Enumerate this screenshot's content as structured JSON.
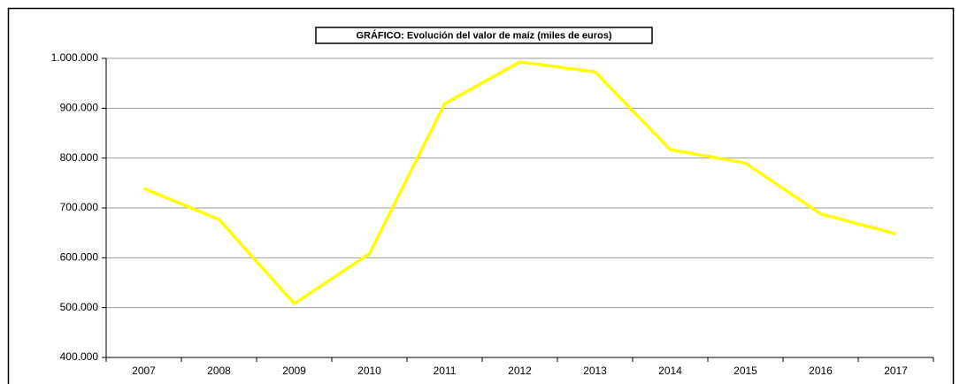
{
  "chart_data": {
    "type": "line",
    "title": "GRÁFICO: Evolución del valor de maíz (miles de euros)",
    "categories": [
      "2007",
      "2008",
      "2009",
      "2010",
      "2011",
      "2012",
      "2013",
      "2014",
      "2015",
      "2016",
      "2017"
    ],
    "series": [
      {
        "color": "#ffff00",
        "values": [
          739000,
          677000,
          508000,
          608000,
          909000,
          993000,
          973000,
          817000,
          790000,
          688000,
          648000
        ]
      }
    ],
    "ylim": [
      400000,
      1000000
    ],
    "yticks": [
      {
        "value": 400000,
        "label": "400.000"
      },
      {
        "value": 500000,
        "label": "500.000"
      },
      {
        "value": 600000,
        "label": "600.000"
      },
      {
        "value": 700000,
        "label": "700.000"
      },
      {
        "value": 800000,
        "label": "800.000"
      },
      {
        "value": 900000,
        "label": "900.000"
      },
      {
        "value": 1000000,
        "label": "1.000.000"
      }
    ],
    "grid": true
  }
}
